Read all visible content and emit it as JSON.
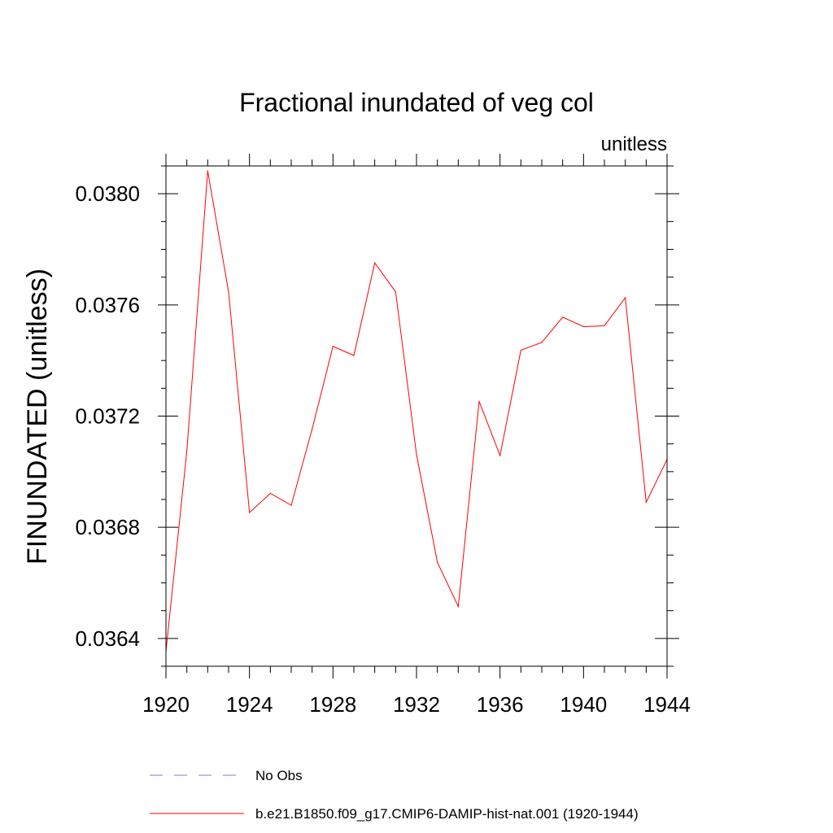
{
  "chart_data": {
    "type": "line",
    "title": "Fractional inundated of veg col",
    "units_label": "unitless",
    "ylabel": "FINUNDATED  (unitless)",
    "xlabel": "",
    "xlim": [
      1920,
      1944
    ],
    "ylim": [
      0.0363,
      0.0381
    ],
    "x_ticks": [
      1920,
      1924,
      1928,
      1932,
      1936,
      1940,
      1944
    ],
    "y_ticks": [
      0.0364,
      0.0368,
      0.0372,
      0.0376,
      0.038
    ],
    "y_tick_labels": [
      "0.0364",
      "0.0368",
      "0.0372",
      "0.0376",
      "0.0380"
    ],
    "grid": false,
    "legend_position": "bottom",
    "series": [
      {
        "name": "b.e21.B1850.f09_g17.CMIP6-DAMIP-hist-nat.001 (1920-1944)",
        "color": "#ff0000",
        "x": [
          1920,
          1921,
          1922,
          1923,
          1924,
          1925,
          1926,
          1927,
          1928,
          1929,
          1930,
          1931,
          1932,
          1933,
          1934,
          1935,
          1936,
          1937,
          1938,
          1939,
          1940,
          1941,
          1942,
          1943,
          1944
        ],
        "values": [
          0.036354,
          0.037074,
          0.038082,
          0.037647,
          0.036853,
          0.036922,
          0.036879,
          0.037153,
          0.037451,
          0.037418,
          0.037751,
          0.037647,
          0.037062,
          0.036674,
          0.036515,
          0.037253,
          0.037058,
          0.037437,
          0.037465,
          0.037556,
          0.037522,
          0.037525,
          0.037626,
          0.03689,
          0.037044
        ]
      }
    ],
    "legend": [
      {
        "label": "No Obs",
        "color": "#7b7bc4",
        "style": "dashed"
      },
      {
        "label": "b.e21.B1850.f09_g17.CMIP6-DAMIP-hist-nat.001 (1920-1944)",
        "color": "#ff0000",
        "style": "solid"
      }
    ]
  }
}
